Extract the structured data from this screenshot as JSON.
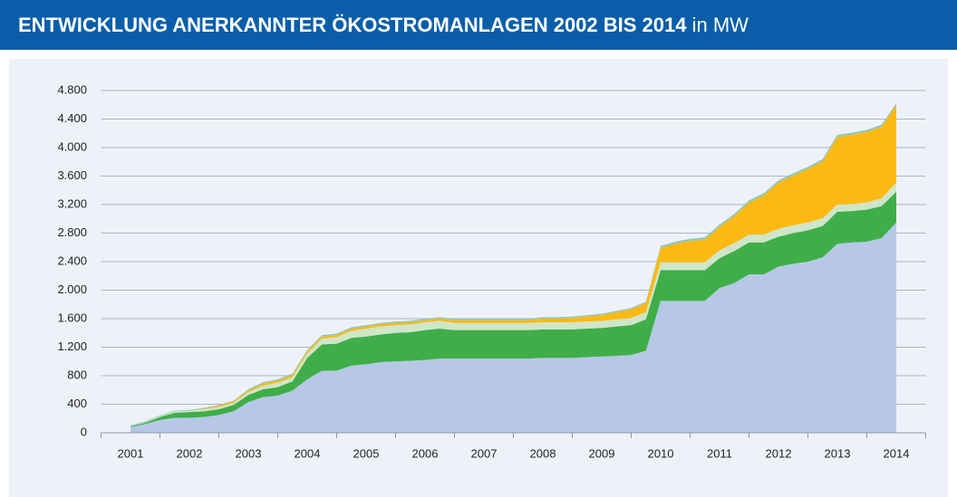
{
  "chart_data": {
    "type": "stacked_area",
    "title": "ENTWICKLUNG ANERKANNTER ÖKOSTROMANLAGEN 2002 BIS 2014",
    "title_unit": "in MW",
    "x": [
      2001,
      2001.25,
      2001.5,
      2001.75,
      2002,
      2002.25,
      2002.5,
      2002.75,
      2003,
      2003.25,
      2003.5,
      2003.75,
      2004,
      2004.25,
      2004.5,
      2004.75,
      2005,
      2005.25,
      2005.5,
      2005.75,
      2006,
      2006.25,
      2006.5,
      2006.75,
      2007,
      2007.25,
      2007.5,
      2007.75,
      2008,
      2008.25,
      2008.5,
      2008.75,
      2009,
      2009.25,
      2009.5,
      2009.75,
      2010,
      2010.25,
      2010.5,
      2010.75,
      2011,
      2011.25,
      2011.5,
      2011.75,
      2012,
      2012.25,
      2012.5,
      2012.75,
      2013,
      2013.25,
      2013.5,
      2013.75,
      2014
    ],
    "series": [
      {
        "color": "#b6c8e6",
        "values": [
          80,
          120,
          180,
          210,
          210,
          220,
          250,
          300,
          430,
          500,
          520,
          590,
          750,
          870,
          870,
          940,
          960,
          990,
          1000,
          1010,
          1020,
          1040,
          1040,
          1040,
          1040,
          1040,
          1040,
          1040,
          1050,
          1050,
          1050,
          1060,
          1070,
          1080,
          1090,
          1150,
          1850,
          1850,
          1850,
          1850,
          2030,
          2100,
          2220,
          2220,
          2330,
          2370,
          2400,
          2460,
          2650,
          2670,
          2680,
          2730,
          2950
        ]
      },
      {
        "color": "#3fae49",
        "values": [
          10,
          20,
          40,
          70,
          80,
          80,
          80,
          90,
          100,
          110,
          120,
          130,
          300,
          370,
          380,
          390,
          390,
          390,
          400,
          400,
          420,
          420,
          400,
          400,
          400,
          400,
          400,
          400,
          400,
          400,
          400,
          400,
          400,
          410,
          420,
          440,
          430,
          430,
          430,
          430,
          420,
          450,
          450,
          450,
          420,
          430,
          440,
          440,
          450,
          440,
          450,
          450,
          430
        ]
      },
      {
        "color": "#cfe6c8",
        "values": [
          5,
          10,
          15,
          20,
          20,
          30,
          30,
          30,
          40,
          50,
          60,
          60,
          60,
          80,
          90,
          100,
          110,
          110,
          110,
          110,
          110,
          110,
          100,
          100,
          100,
          100,
          100,
          100,
          100,
          100,
          100,
          100,
          100,
          100,
          100,
          100,
          110,
          110,
          110,
          110,
          110,
          110,
          110,
          110,
          110,
          110,
          110,
          110,
          100,
          100,
          100,
          110,
          130
        ]
      },
      {
        "color": "#fdb913",
        "values": [
          0,
          0,
          0,
          0,
          0,
          10,
          20,
          20,
          20,
          30,
          30,
          30,
          30,
          30,
          30,
          30,
          30,
          30,
          30,
          30,
          30,
          30,
          40,
          40,
          40,
          40,
          40,
          40,
          50,
          50,
          60,
          70,
          80,
          100,
          120,
          130,
          200,
          260,
          300,
          320,
          330,
          380,
          450,
          550,
          650,
          700,
          750,
          800,
          950,
          970,
          990,
          1000,
          1080
        ]
      },
      {
        "color": "#93c7b4",
        "values": [
          10,
          10,
          10,
          10,
          10,
          10,
          10,
          10,
          20,
          20,
          20,
          20,
          20,
          20,
          20,
          20,
          20,
          20,
          20,
          20,
          20,
          20,
          20,
          20,
          20,
          20,
          20,
          20,
          20,
          20,
          20,
          20,
          20,
          20,
          20,
          20,
          30,
          30,
          30,
          30,
          30,
          30,
          30,
          30,
          30,
          30,
          30,
          30,
          30,
          30,
          30,
          30,
          30
        ]
      }
    ],
    "xlim": [
      2000.5,
      2014.5
    ],
    "xticks": [
      2001,
      2002,
      2003,
      2004,
      2005,
      2006,
      2007,
      2008,
      2009,
      2010,
      2011,
      2012,
      2013,
      2014
    ],
    "ylim": [
      0,
      4800
    ],
    "yticks": [
      0,
      400,
      800,
      {
        "value": 1200,
        "label": "1.200"
      },
      {
        "value": 1600,
        "label": "1.600"
      },
      {
        "value": 2000,
        "label": "2.000"
      },
      {
        "value": 2400,
        "label": "2.400"
      },
      {
        "value": 2800,
        "label": "2.800"
      },
      {
        "value": 3200,
        "label": "3.200"
      },
      {
        "value": 3600,
        "label": "3.600"
      },
      {
        "value": 4000,
        "label": "4.000"
      },
      {
        "value": 4400,
        "label": "4.400"
      },
      {
        "value": 4800,
        "label": "4.800"
      }
    ],
    "grid": true
  }
}
